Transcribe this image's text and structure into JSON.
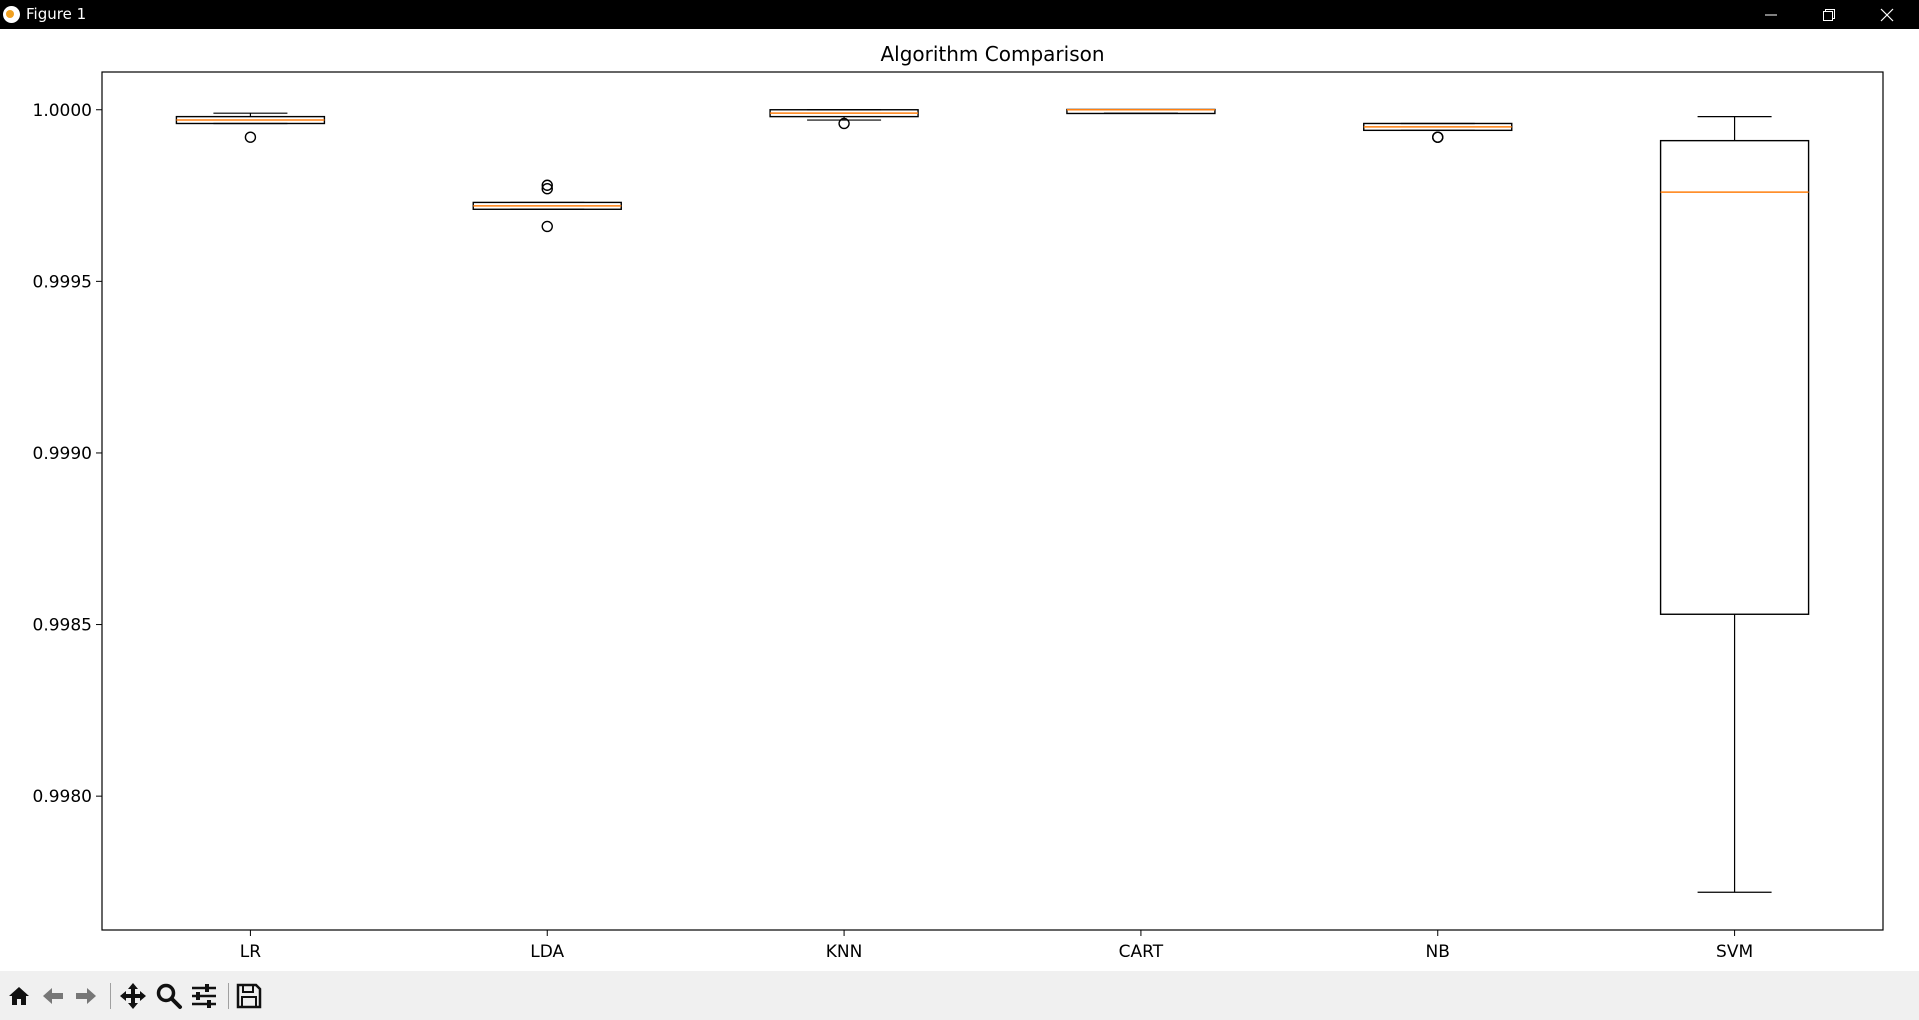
{
  "window": {
    "title": "Figure 1"
  },
  "toolbar": {
    "buttons": [
      {
        "name": "home-icon",
        "label": "Home"
      },
      {
        "name": "back-arrow-icon",
        "label": "Back"
      },
      {
        "name": "forward-arrow-icon",
        "label": "Forward"
      },
      {
        "name": "pan-icon",
        "label": "Pan"
      },
      {
        "name": "zoom-icon",
        "label": "Zoom"
      },
      {
        "name": "configure-subplots-icon",
        "label": "Subplots"
      },
      {
        "name": "save-icon",
        "label": "Save"
      }
    ]
  },
  "chart_data": {
    "type": "box",
    "title": "Algorithm Comparison",
    "xlabel": "",
    "ylabel": "",
    "categories": [
      "LR",
      "LDA",
      "KNN",
      "CART",
      "NB",
      "SVM"
    ],
    "ylim": [
      0.99761,
      1.00011
    ],
    "yticks": [
      {
        "value": 0.998,
        "label": "0.9980"
      },
      {
        "value": 0.9985,
        "label": "0.9985"
      },
      {
        "value": 0.999,
        "label": "0.9990"
      },
      {
        "value": 0.9995,
        "label": "0.9995"
      },
      {
        "value": 1.0,
        "label": "1.0000"
      }
    ],
    "grid": false,
    "series": [
      {
        "category": "LR",
        "whisker_low": 0.99996,
        "q1": 0.99996,
        "median": 0.99997,
        "q3": 0.99998,
        "whisker_high": 0.99999,
        "outliers": [
          0.99992
        ]
      },
      {
        "category": "LDA",
        "whisker_low": 0.99971,
        "q1": 0.99971,
        "median": 0.99972,
        "q3": 0.99973,
        "whisker_high": 0.99973,
        "outliers": [
          0.99966,
          0.99977,
          0.99978
        ]
      },
      {
        "category": "KNN",
        "whisker_low": 0.99997,
        "q1": 0.99998,
        "median": 0.99999,
        "q3": 1.0,
        "whisker_high": 1.0,
        "outliers": [
          0.99996
        ]
      },
      {
        "category": "CART",
        "whisker_low": 0.99999,
        "q1": 0.99999,
        "median": 1.0,
        "q3": 1.0,
        "whisker_high": 1.0,
        "outliers": []
      },
      {
        "category": "NB",
        "whisker_low": 0.99994,
        "q1": 0.99994,
        "median": 0.99995,
        "q3": 0.99996,
        "whisker_high": 0.99996,
        "outliers": [
          0.99992,
          0.99992
        ]
      },
      {
        "category": "SVM",
        "whisker_low": 0.99772,
        "q1": 0.99853,
        "median": 0.99976,
        "q3": 0.99991,
        "whisker_high": 0.99998,
        "outliers": []
      }
    ],
    "colors": {
      "box": "#000000",
      "median": "#ff7f0e"
    }
  }
}
